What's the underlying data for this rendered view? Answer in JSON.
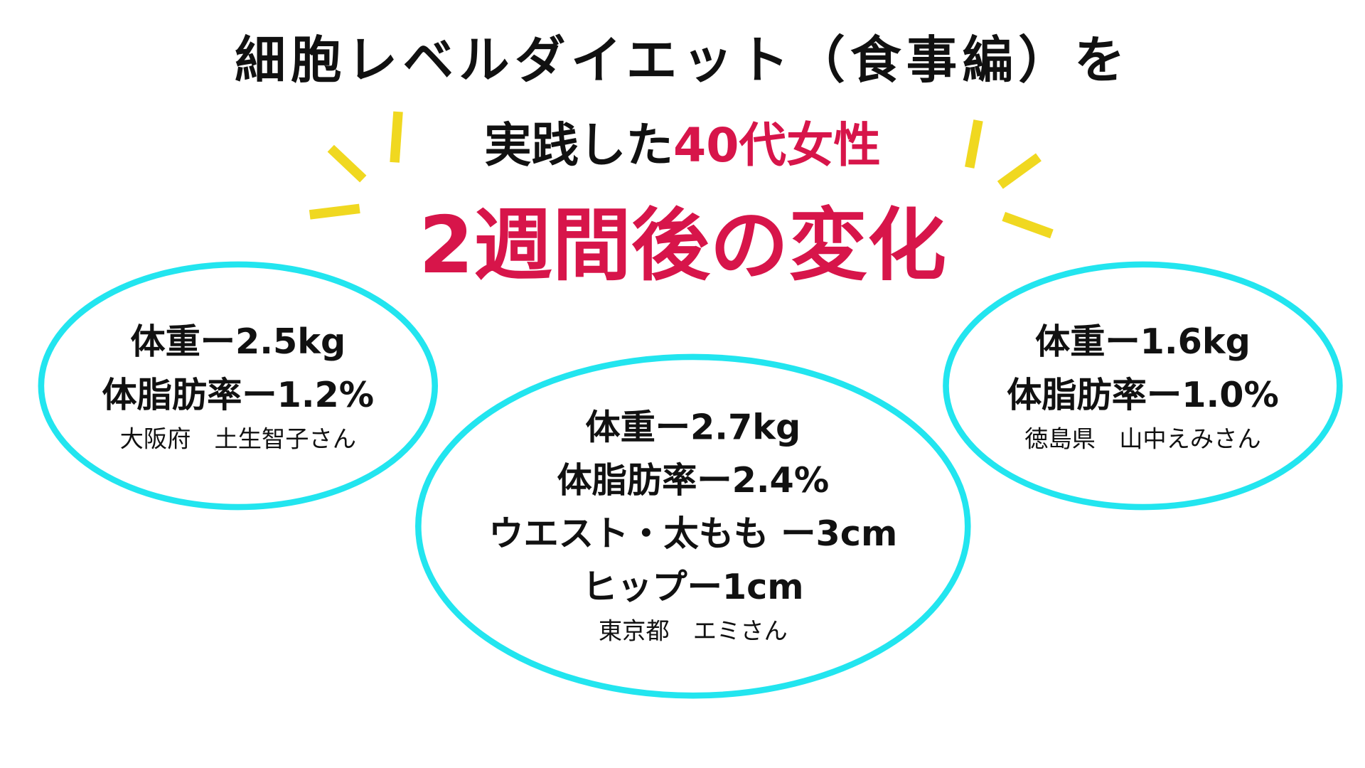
{
  "title": {
    "line1": "細胞レベルダイエット（食事編）を",
    "line2_prefix": "実践した",
    "line2_accent": "40代女性",
    "line3": "2週間後の変化"
  },
  "colors": {
    "accent": "#d7154a",
    "ellipse_stroke": "#22e5ef",
    "rays": "#f0d820"
  },
  "cards": [
    {
      "weight": "体重ー2.5kg",
      "body_fat": "体脂肪率ー1.2%",
      "name": "大阪府　土生智子さん"
    },
    {
      "weight": "体重ー2.7kg",
      "body_fat": "体脂肪率ー2.4%",
      "waist": "ウエスト・太もも ー3cm",
      "hip": "ヒップー1cm",
      "name": "東京都　エミさん"
    },
    {
      "weight": "体重ー1.6kg",
      "body_fat": "体脂肪率ー1.0%",
      "name": "徳島県　山中えみさん"
    }
  ]
}
